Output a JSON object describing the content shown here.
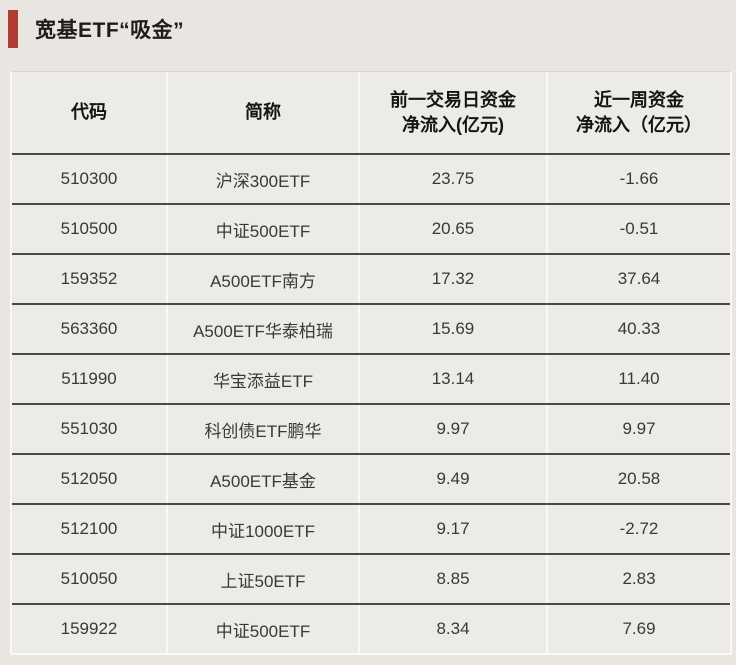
{
  "page": {
    "background_color": "#e9e6e1",
    "accent_color": "#b43b32",
    "grid_line_dark": "#4b4945",
    "grid_line_light": "#f9f8f4"
  },
  "chart_data": {
    "type": "table",
    "title": "宽基ETF“吸金”",
    "columns": [
      "代码",
      "简称",
      "前一交易日资金\n净流入(亿元)",
      "近一周资金\n净流入（亿元）"
    ],
    "rows": [
      [
        "510300",
        "沪深300ETF",
        "23.75",
        "-1.66"
      ],
      [
        "510500",
        "中证500ETF",
        "20.65",
        "-0.51"
      ],
      [
        "159352",
        "A500ETF南方",
        "17.32",
        "37.64"
      ],
      [
        "563360",
        "A500ETF华泰柏瑞",
        "15.69",
        "40.33"
      ],
      [
        "511990",
        "华宝添益ETF",
        "13.14",
        "11.40"
      ],
      [
        "551030",
        "科创债ETF鹏华",
        "9.97",
        "9.97"
      ],
      [
        "512050",
        "A500ETF基金",
        "9.49",
        "20.58"
      ],
      [
        "512100",
        "中证1000ETF",
        "9.17",
        "-2.72"
      ],
      [
        "510050",
        "上证50ETF",
        "8.85",
        "2.83"
      ],
      [
        "159922",
        "中证500ETF",
        "8.34",
        "7.69"
      ]
    ]
  }
}
